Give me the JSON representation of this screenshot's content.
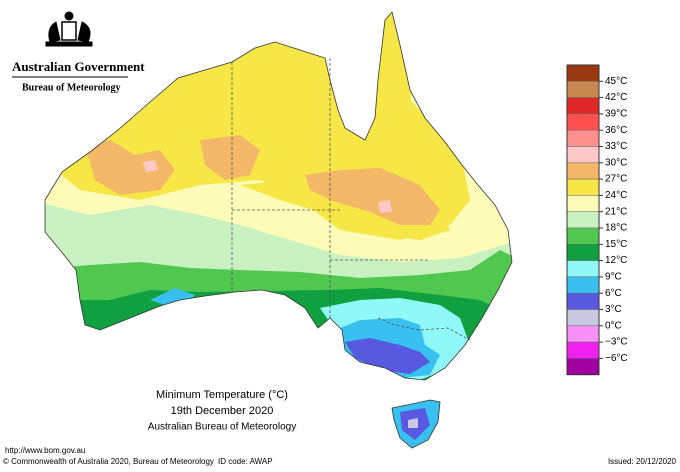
{
  "header": {
    "government": "Australian Government",
    "bureau": "Bureau of Meteorology"
  },
  "legend": {
    "labels": [
      "45°C",
      "42°C",
      "39°C",
      "36°C",
      "33°C",
      "30°C",
      "27°C",
      "24°C",
      "21°C",
      "18°C",
      "15°C",
      "12°C",
      "9°C",
      "6°C",
      "3°C",
      "0°C",
      "−3°C",
      "−6°C"
    ],
    "colors": [
      "#9a3a10",
      "#c88850",
      "#e02828",
      "#ff5050",
      "#ff9090",
      "#ffc8c8",
      "#f2b868",
      "#f6e646",
      "#fcfcb8",
      "#c8f0c0",
      "#50c850",
      "#10a040",
      "#90f8f8",
      "#38c0f0",
      "#5858e0",
      "#c8c8e0",
      "#f890f8",
      "#f020f0",
      "#a000a0"
    ]
  },
  "map_title": {
    "line1": "Minimum Temperature (°C)",
    "line2": "19th December 2020",
    "line3": "Australian Bureau of Meteorology"
  },
  "footer": {
    "url": "http://www.bom.gov.au",
    "copyright": "© Commonwealth of Australia 2020, Bureau of Meteorology",
    "id_code": "ID code: AWAP",
    "issued": "Issued: 20/12/2020"
  }
}
